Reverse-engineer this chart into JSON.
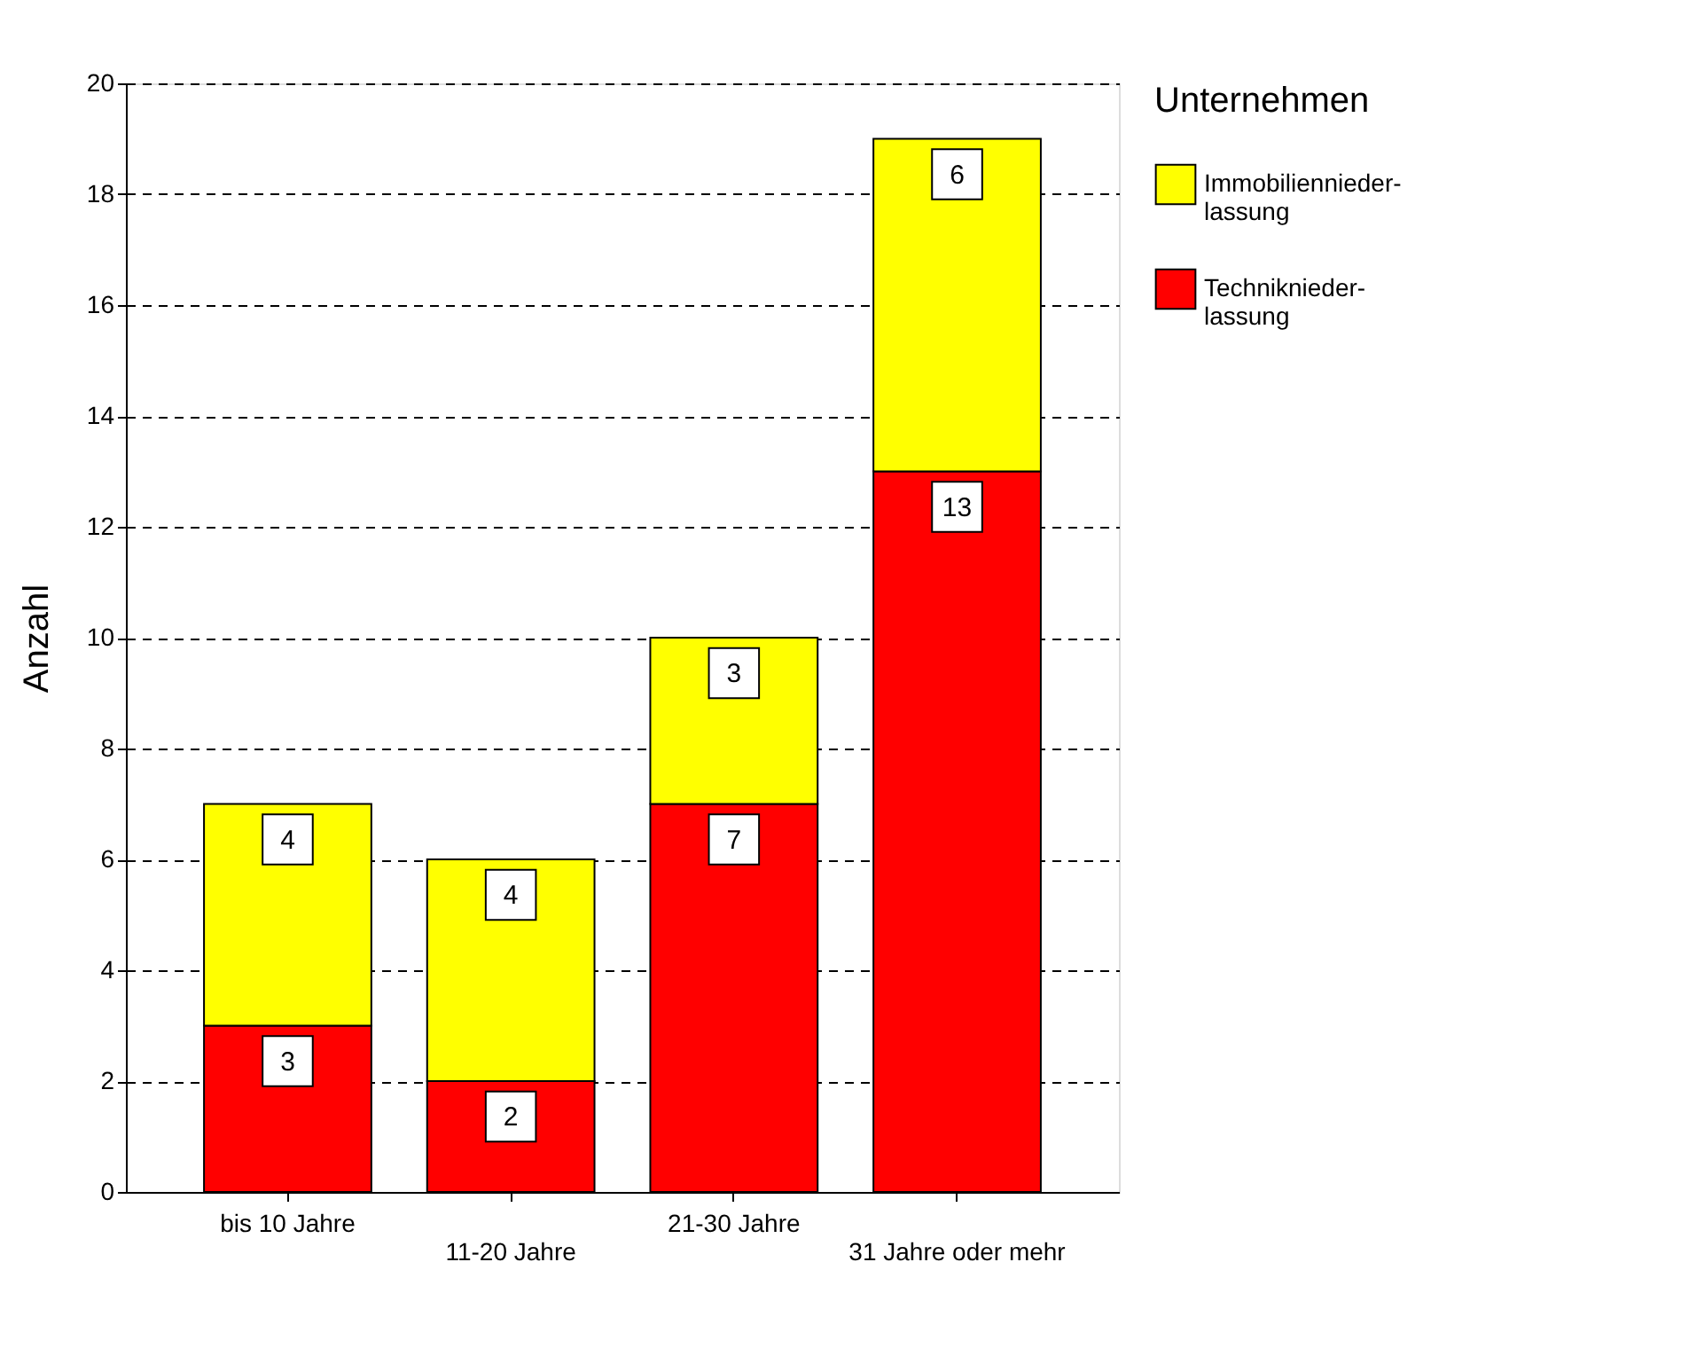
{
  "chart_data": {
    "type": "bar",
    "stacked": true,
    "ylabel": "Anzahl",
    "legend_title": "Unternehmen",
    "categories": [
      "bis 10 Jahre",
      "11-20 Jahre",
      "21-30 Jahre",
      "31 Jahre oder mehr"
    ],
    "series": [
      {
        "name": "Techniknieder-lassung",
        "color": "#ff0000",
        "values": [
          3,
          2,
          7,
          13
        ]
      },
      {
        "name": "Immobiliennieder-lassung",
        "color": "#ffff00",
        "values": [
          4,
          4,
          3,
          6
        ]
      }
    ],
    "ylim": [
      0,
      20
    ],
    "yticks": [
      0,
      2,
      4,
      6,
      8,
      10,
      12,
      14,
      16,
      18,
      20
    ],
    "grid": "y",
    "legend": "right",
    "data_labels": true
  }
}
